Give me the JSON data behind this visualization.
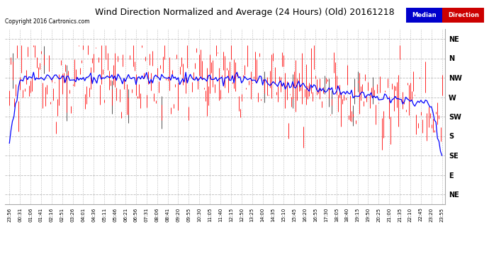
{
  "title": "Wind Direction Normalized and Average (24 Hours) (Old) 20161218",
  "copyright": "Copyright 2016 Cartronics.com",
  "y_tick_values": [
    405,
    360,
    315,
    270,
    225,
    180,
    135,
    90,
    45
  ],
  "y_tick_labels": [
    "NE",
    "N",
    "NW",
    "W",
    "SW",
    "S",
    "SE",
    "E",
    "NE"
  ],
  "ylim": [
    22.5,
    427.5
  ],
  "bg_color": "#ffffff",
  "grid_color": "#bbbbbb",
  "bar_color": "#ff0000",
  "dark_bar_color": "#333333",
  "line_color": "#0000ff",
  "median_bg": "#0000cc",
  "direction_bg": "#cc0000",
  "legend_text_color": "#ffffff",
  "num_points": 288,
  "x_labels": [
    "23:56",
    "00:31",
    "01:06",
    "01:41",
    "02:16",
    "02:51",
    "03:26",
    "04:01",
    "04:36",
    "05:11",
    "05:46",
    "06:21",
    "06:56",
    "07:31",
    "08:06",
    "08:41",
    "09:20",
    "09:55",
    "10:30",
    "11:05",
    "11:40",
    "12:15",
    "12:50",
    "13:25",
    "14:00",
    "14:35",
    "15:10",
    "15:45",
    "16:20",
    "16:55",
    "17:30",
    "18:05",
    "18:40",
    "19:15",
    "19:50",
    "20:25",
    "21:00",
    "21:35",
    "22:10",
    "22:45",
    "23:20",
    "23:55"
  ]
}
